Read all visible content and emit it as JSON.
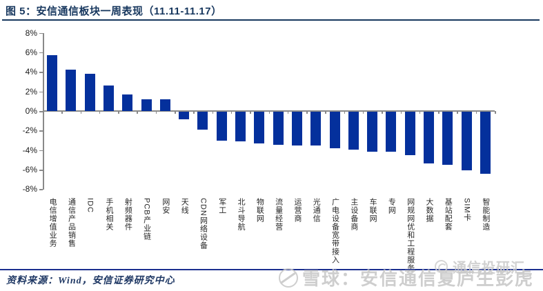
{
  "header": {
    "figure_title": "图 5：安信通信板块一周表现（11.11-11.17）"
  },
  "chart_data": {
    "type": "bar",
    "title": "安信通信板块一周表现（11.11-11.17）",
    "period": "11.11-11.17",
    "xlabel": "",
    "ylabel": "",
    "unit": "%",
    "ylim": [
      -8,
      8
    ],
    "grid": false,
    "legend_position": "none",
    "bar_color": "#04309C",
    "axis_color": "#898989",
    "yticks": [
      8,
      6,
      4,
      2,
      0,
      -2,
      -4,
      -6,
      -8
    ],
    "ytick_labels": [
      "8%",
      "6%",
      "4%",
      "2%",
      "0%",
      "-2%",
      "-4%",
      "-6%",
      "-8%"
    ],
    "categories": [
      "电信增值业务",
      "通信产品销售",
      "IDC",
      "手机相关",
      "射频器件",
      "PCB产业链",
      "网安",
      "天线",
      "CDN网络设备",
      "军工",
      "北斗导航",
      "物联网",
      "流量经营",
      "运营商",
      "光通信",
      "广电设备宽带接入",
      "主设备商",
      "车联网",
      "专网",
      "网规网优和工程服务",
      "大数据",
      "基站配套",
      "SIM卡",
      "智能制造"
    ],
    "values": [
      5.7,
      4.2,
      3.8,
      2.6,
      1.7,
      1.2,
      1.2,
      -0.8,
      -1.9,
      -3.0,
      -3.1,
      -3.3,
      -3.4,
      -3.5,
      -3.5,
      -3.8,
      -3.9,
      -4.1,
      -4.1,
      -4.5,
      -5.3,
      -5.5,
      -6.0,
      -6.4
    ]
  },
  "footer": {
    "source": "资料来源：Wind，安信证券研究中心"
  },
  "watermarks": {
    "xueqiu": {
      "icon": "snowball-logo",
      "text": "雪球：安信通信夏庐生彭虎"
    },
    "touyanhui": {
      "icon": "swirl-logo",
      "text": "通信投研汇"
    }
  },
  "colors": {
    "title": "#17375E",
    "bar": "#04309C",
    "axis": "#898989",
    "footer_rule": "#1B2F8F",
    "watermark": "#C9C9C9"
  }
}
